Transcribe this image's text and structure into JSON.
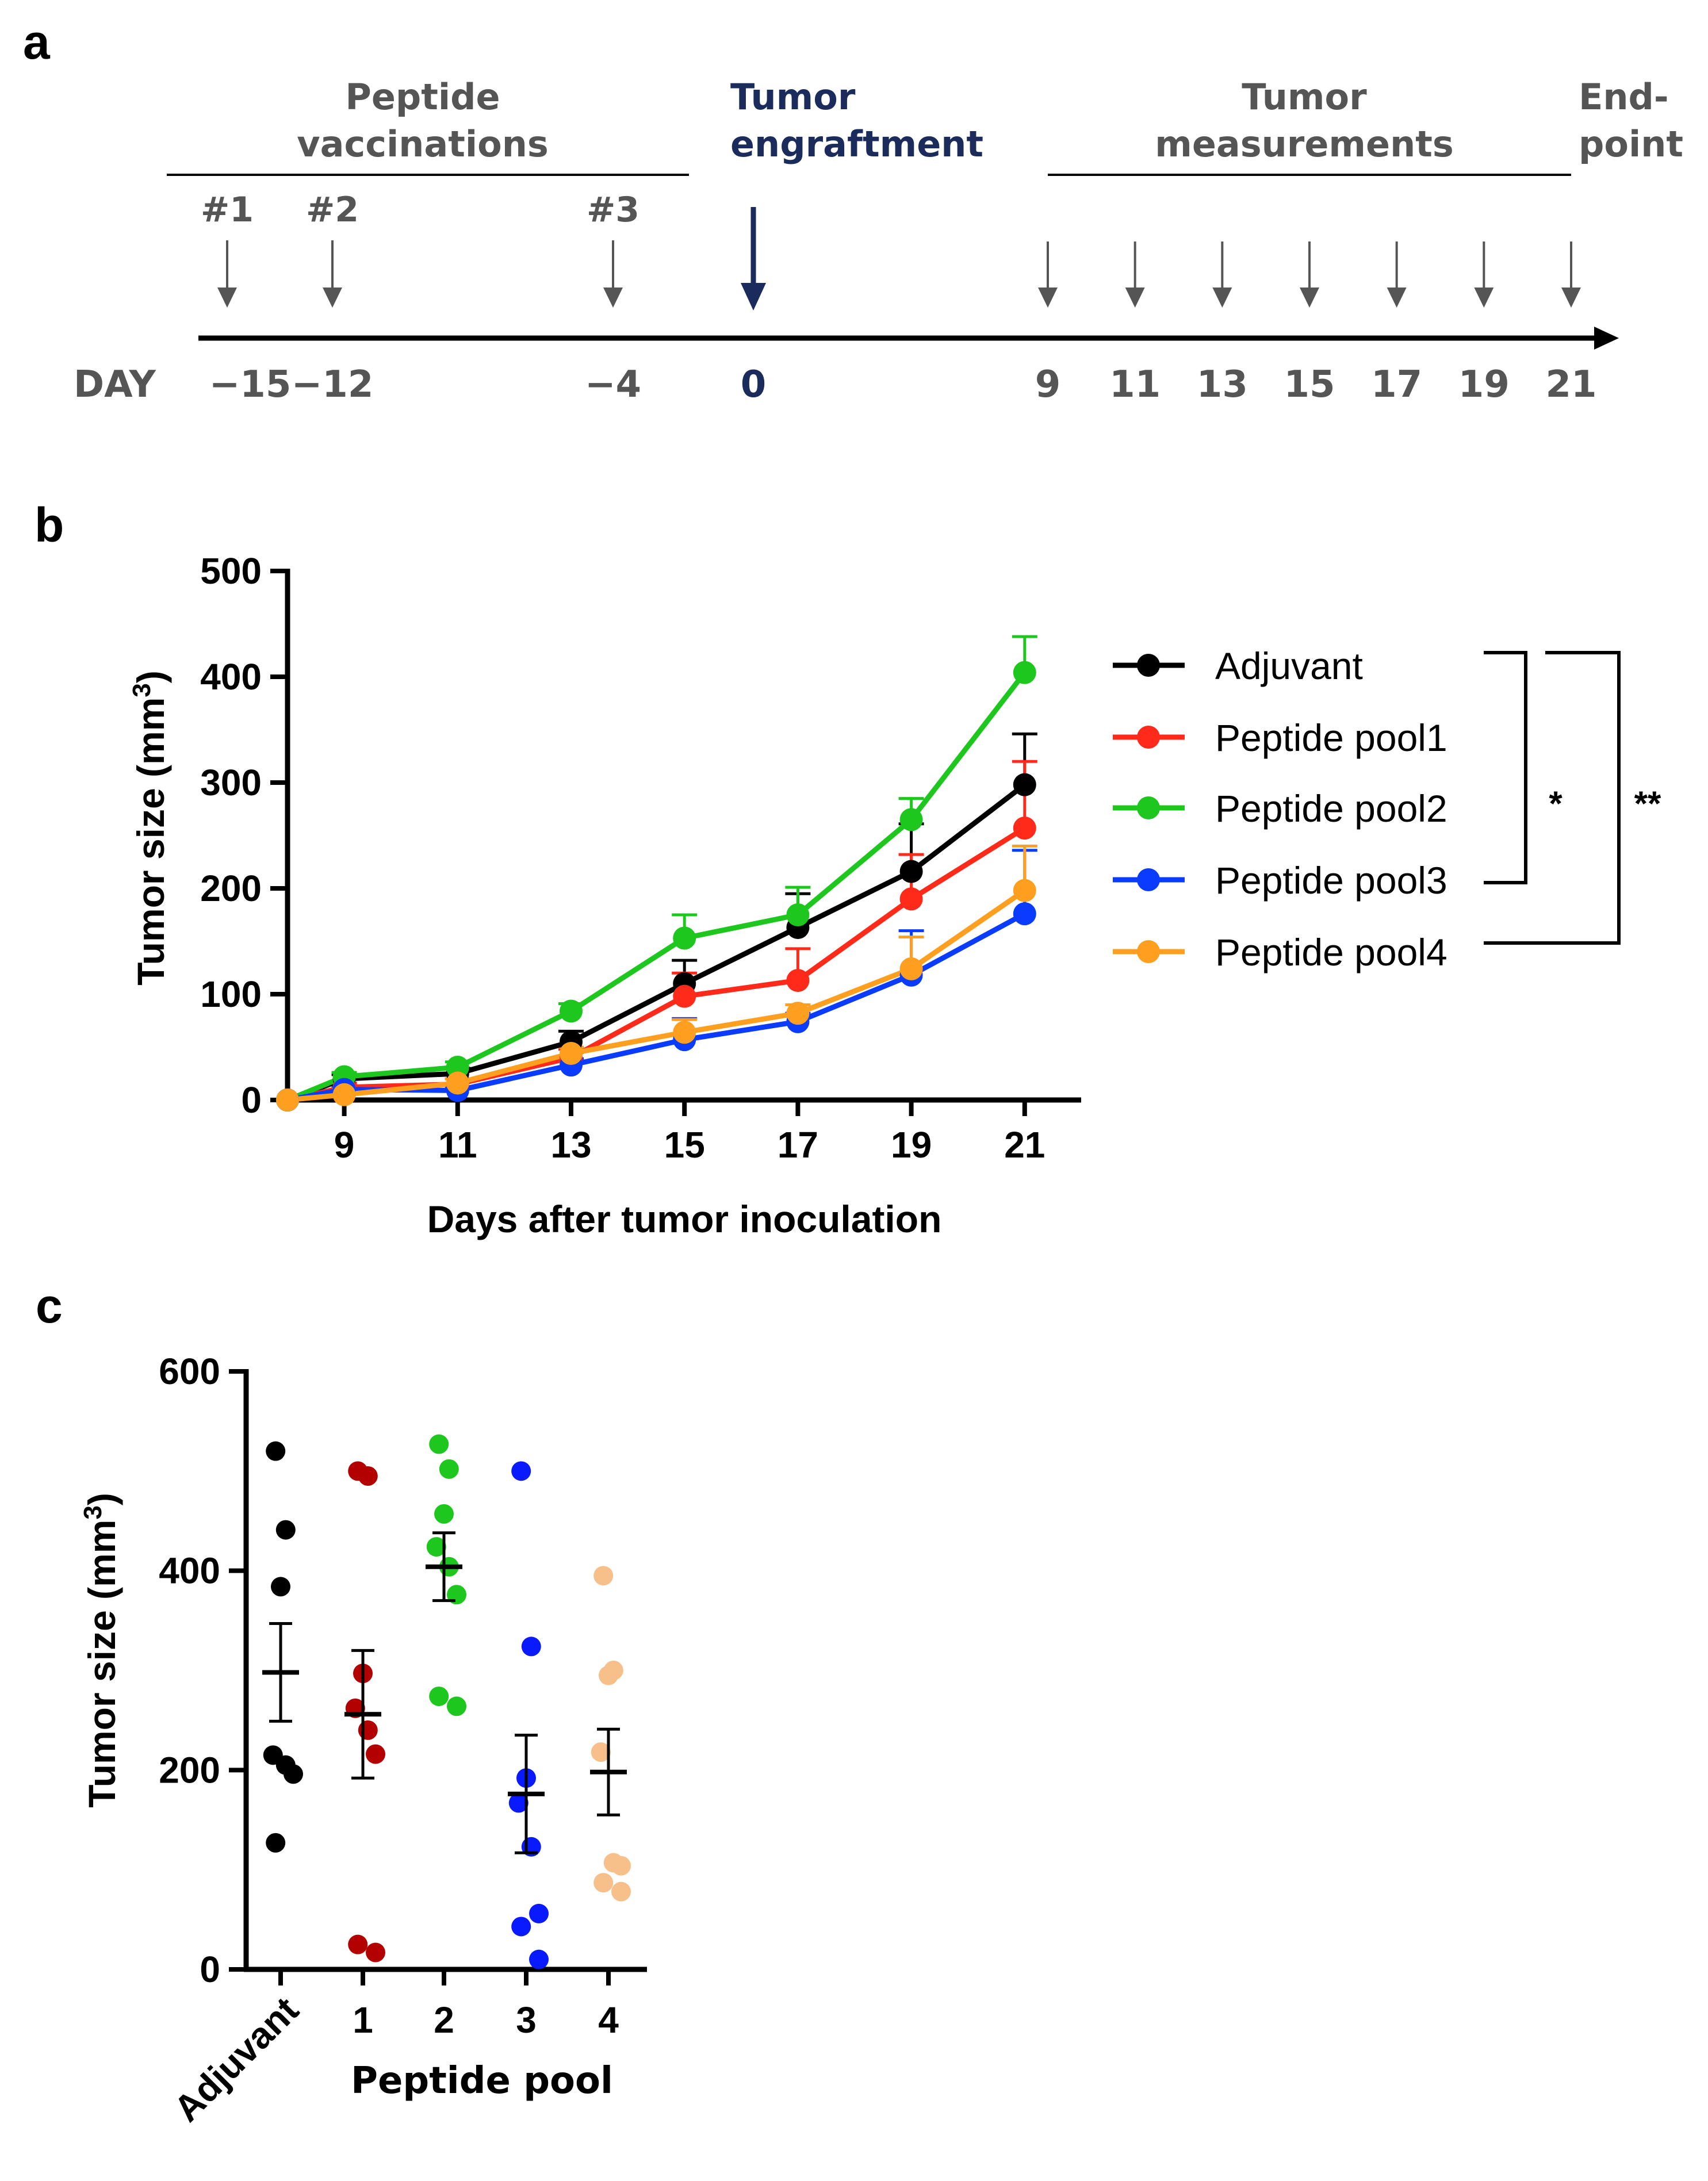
{
  "panels": {
    "a": "a",
    "b": "b",
    "c": "c"
  },
  "timeline": {
    "vaccination_heading_line1": "Peptide",
    "vaccination_heading_line2": "vaccinations",
    "engraftment_heading_line1": "Tumor",
    "engraftment_heading_line2": "engraftment",
    "measurement_heading_line1": "Tumor",
    "measurement_heading_line2": "measurements",
    "endpoint_heading_line1": "End-",
    "endpoint_heading_line2": "point",
    "day_label": "DAY",
    "vaccinations": [
      {
        "label": "#1",
        "day": -15,
        "day_text": "−15"
      },
      {
        "label": "#2",
        "day": -12,
        "day_text": "−12"
      },
      {
        "label": "#3",
        "day": -4,
        "day_text": "−4"
      }
    ],
    "engraftment": {
      "day": 0,
      "day_text": "0"
    },
    "measurements": [
      {
        "day": 9,
        "day_text": "9"
      },
      {
        "day": 11,
        "day_text": "11"
      },
      {
        "day": 13,
        "day_text": "13"
      },
      {
        "day": 15,
        "day_text": "15"
      },
      {
        "day": 17,
        "day_text": "17"
      },
      {
        "day": 19,
        "day_text": "19"
      },
      {
        "day": 21,
        "day_text": "21"
      }
    ],
    "colors": {
      "grey": "#555555",
      "navy": "#1b2c5c",
      "axis": "#000000"
    }
  },
  "chart_data": [
    {
      "id": "line",
      "type": "line",
      "xlabel": "Days after tumor inoculation",
      "ylabel_main": "Tumor size  (mm",
      "ylabel_sup": "3",
      "ylabel_close": ")",
      "ylim": [
        0,
        500
      ],
      "yticks": [
        0,
        100,
        200,
        300,
        400,
        500
      ],
      "xticks": [
        9,
        11,
        13,
        15,
        17,
        19,
        21
      ],
      "x": [
        8,
        9,
        11,
        13,
        15,
        17,
        19,
        21
      ],
      "series": [
        {
          "name": "Adjuvant",
          "color": "#000000",
          "values": [
            0,
            20,
            25,
            55,
            110,
            163,
            216,
            298
          ],
          "errors": [
            0,
            4,
            5,
            10,
            22,
            32,
            45,
            48
          ]
        },
        {
          "name": "Peptide pool1",
          "color": "#ff2a1a",
          "values": [
            0,
            12,
            15,
            40,
            98,
            113,
            190,
            257
          ],
          "errors": [
            0,
            4,
            5,
            8,
            22,
            30,
            42,
            63
          ]
        },
        {
          "name": "Peptide pool2",
          "color": "#1dc71d",
          "values": [
            0,
            22,
            31,
            84,
            153,
            175,
            265,
            404
          ],
          "errors": [
            0,
            4,
            5,
            7,
            22,
            26,
            20,
            34
          ]
        },
        {
          "name": "Peptide pool3",
          "color": "#0a3cff",
          "values": [
            0,
            10,
            9,
            33,
            57,
            74,
            118,
            176
          ],
          "errors": [
            0,
            3,
            3,
            6,
            20,
            8,
            42,
            60
          ]
        },
        {
          "name": "Peptide pool4",
          "color": "#ff9f1f",
          "values": [
            0,
            5,
            16,
            44,
            64,
            82,
            124,
            198
          ],
          "errors": [
            0,
            3,
            4,
            6,
            12,
            8,
            30,
            42
          ]
        }
      ],
      "significance": [
        {
          "label": "*",
          "from": "Adjuvant",
          "to": "Peptide pool3"
        },
        {
          "label": "**",
          "from": "Adjuvant",
          "to": "Peptide pool4"
        }
      ],
      "legend_position": "right"
    },
    {
      "id": "scatter",
      "type": "scatter",
      "xlabel": "Peptide pool",
      "ylabel_main": "Tumor size  (mm",
      "ylabel_sup": "3",
      "ylabel_close": ")",
      "ylim": [
        0,
        600
      ],
      "yticks": [
        0,
        200,
        400,
        600
      ],
      "categories": [
        "Adjuvant",
        "1",
        "2",
        "3",
        "4"
      ],
      "groups": [
        {
          "name": "Adjuvant",
          "color": "#000000",
          "mean": 298,
          "sem": 49,
          "points": [
            520,
            441,
            384,
            215,
            205,
            196,
            127
          ]
        },
        {
          "name": "1",
          "color": "#b30000",
          "mean": 256,
          "sem": 64,
          "points": [
            500,
            495,
            297,
            262,
            240,
            216,
            25,
            17
          ]
        },
        {
          "name": "2",
          "color": "#1dc71d",
          "mean": 404,
          "sem": 34,
          "points": [
            527,
            502,
            457,
            424,
            404,
            376,
            274,
            264
          ]
        },
        {
          "name": "3",
          "color": "#0a1aff",
          "mean": 176,
          "sem": 59,
          "points": [
            500,
            324,
            192,
            167,
            123,
            56,
            43,
            10
          ]
        },
        {
          "name": "4",
          "color": "#f7c08a",
          "mean": 198,
          "sem": 43,
          "points": [
            395,
            300,
            295,
            218,
            107,
            104,
            87,
            78
          ]
        }
      ]
    }
  ]
}
